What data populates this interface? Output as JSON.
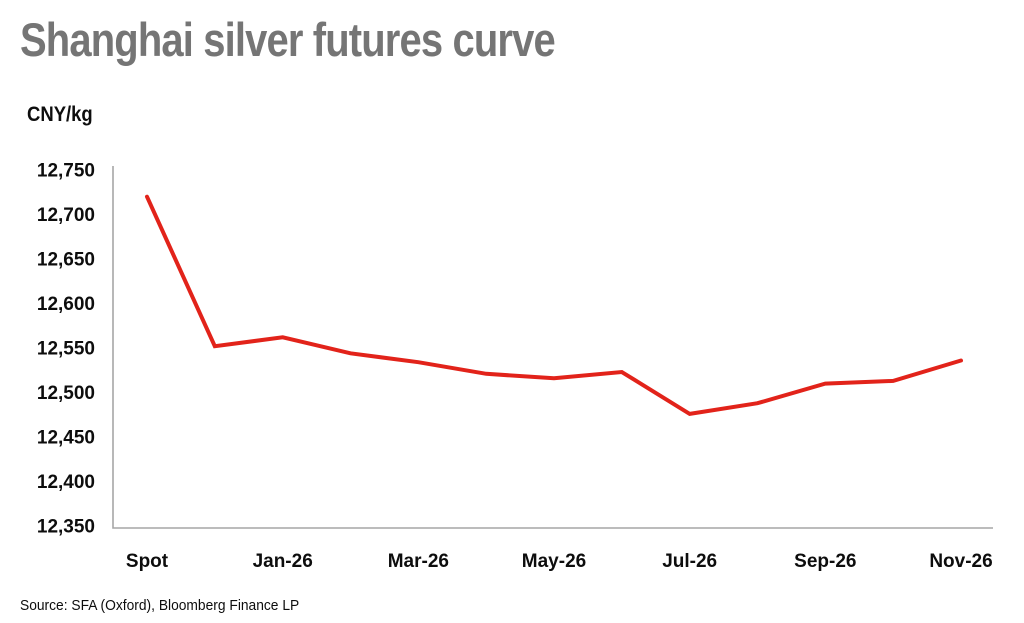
{
  "chart_data": {
    "type": "line",
    "title": "Shanghai silver futures curve",
    "ylabel": "CNY/kg",
    "xlabel": "",
    "source": "Source: SFA (Oxford), Bloomberg Finance LP",
    "series": [
      {
        "name": "Shanghai silver futures curve",
        "color": "#e2231a",
        "values": [
          12720,
          12552,
          12562,
          12544,
          12534,
          12521,
          12516,
          12523,
          12476,
          12488,
          12510,
          12513,
          12536
        ]
      }
    ],
    "x_tick_labels": [
      "Spot",
      "Jan-26",
      "Mar-26",
      "May-26",
      "Jul-26",
      "Sep-26",
      "Nov-26"
    ],
    "x_tick_indices": [
      0,
      2,
      4,
      6,
      8,
      10,
      12
    ],
    "n_points": 13,
    "ylim": [
      12350,
      12750
    ],
    "y_ticks": [
      12750,
      12700,
      12650,
      12600,
      12550,
      12500,
      12450,
      12400,
      12350
    ],
    "y_tick_labels": [
      "12,750",
      "12,700",
      "12,650",
      "12,600",
      "12,550",
      "12,500",
      "12,450",
      "12,400",
      "12,350"
    ],
    "grid": "off",
    "legend": "none",
    "axis_color": "#a6a6a6",
    "title_color": "#757575",
    "text_color": "#0d0d0d"
  }
}
